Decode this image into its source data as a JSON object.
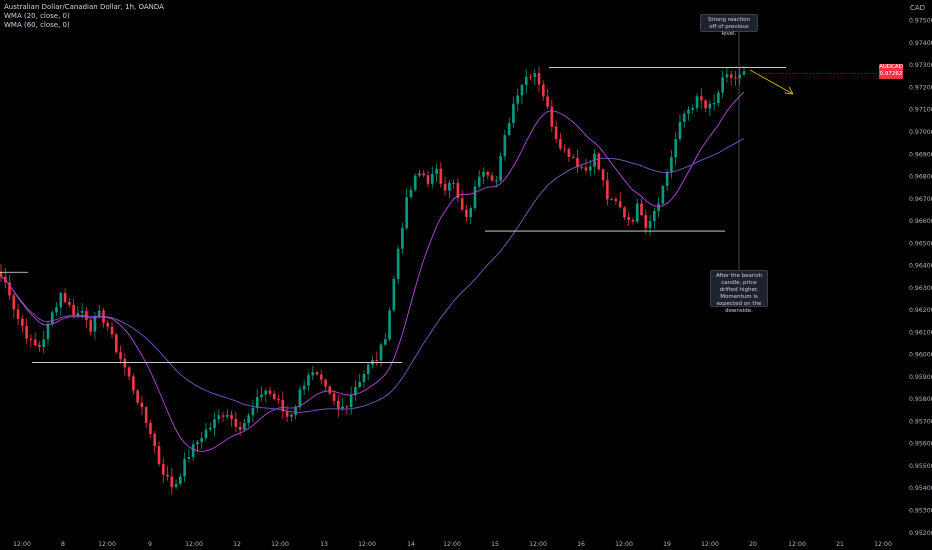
{
  "legend": {
    "title": "Australian Dollar/Canadian Dollar, 1h, OANDA",
    "wma20": "WMA (20, close, 0)",
    "wma60": "WMA (60, close, 0)"
  },
  "currency": "CAD",
  "price_tag": {
    "symbol": "AUDCAD",
    "price": "0.97262",
    "countdown": "39:42"
  },
  "annotations": {
    "top": "Strong reaction off of previous level.",
    "bottom": "After the bearish candle, price drifted higher. Momentum is expected on the downside."
  },
  "colors": {
    "up": "#089981",
    "down": "#f23645",
    "wma20": "#b24bd6",
    "wma60": "#7e57c2",
    "level": "#e6e6e6",
    "arrow": "#c9b700"
  },
  "chart_data": {
    "type": "candlestick",
    "title": "Australian Dollar/Canadian Dollar, 1h, OANDA",
    "ylim": [
      0.952,
      0.975
    ],
    "y_ticks": [
      "0.97500",
      "0.97400",
      "0.97300",
      "0.97200",
      "0.97100",
      "0.97000",
      "0.96900",
      "0.96800",
      "0.96700",
      "0.96600",
      "0.96500",
      "0.96400",
      "0.96300",
      "0.96200",
      "0.96100",
      "0.96000",
      "0.95900",
      "0.95800",
      "0.95700",
      "0.95600",
      "0.95500",
      "0.95400",
      "0.95300",
      "0.95200"
    ],
    "x_ticks": [
      "12:00",
      "8",
      "12:00",
      "9",
      "12:00",
      "12",
      "12:00",
      "13",
      "12:00",
      "14",
      "12:00",
      "15",
      "12:00",
      "16",
      "12:00",
      "19",
      "12:00",
      "20",
      "12:00",
      "21",
      "12:00"
    ],
    "close_path": [
      0.9635,
      0.963,
      0.9618,
      0.9612,
      0.9605,
      0.9603,
      0.961,
      0.962,
      0.9628,
      0.9622,
      0.9618,
      0.962,
      0.9612,
      0.9618,
      0.9615,
      0.9605,
      0.9598,
      0.959,
      0.9582,
      0.9572,
      0.9565,
      0.9552,
      0.9545,
      0.954,
      0.9548,
      0.9555,
      0.956,
      0.9565,
      0.9568,
      0.9572,
      0.9575,
      0.957,
      0.9568,
      0.9572,
      0.9578,
      0.9585,
      0.9582,
      0.9578,
      0.9572,
      0.9575,
      0.9585,
      0.9592,
      0.959,
      0.9585,
      0.958,
      0.9575,
      0.9578,
      0.9585,
      0.959,
      0.9595,
      0.9598,
      0.9605,
      0.9625,
      0.965,
      0.9668,
      0.9678,
      0.9682,
      0.9678,
      0.9682,
      0.9675,
      0.968,
      0.9668,
      0.966,
      0.9672,
      0.9685,
      0.9682,
      0.9678,
      0.9695,
      0.971,
      0.972,
      0.9725,
      0.9728,
      0.972,
      0.9708,
      0.9698,
      0.9692,
      0.969,
      0.9685,
      0.9683,
      0.969,
      0.968,
      0.9668,
      0.9668,
      0.9663,
      0.966,
      0.9668,
      0.9658,
      0.9665,
      0.9673,
      0.9685,
      0.9698,
      0.9708,
      0.9712,
      0.9715,
      0.971,
      0.9712,
      0.9722,
      0.9725,
      0.9724,
      0.9726
    ],
    "levels": [
      {
        "price": 0.9729,
        "label": ""
      },
      {
        "price": 0.96555,
        "label": ""
      },
      {
        "price": 0.95965,
        "label": ""
      },
      {
        "price": 0.9637,
        "label": ""
      }
    ],
    "series": [
      {
        "name": "WMA (20, close, 0)"
      },
      {
        "name": "WMA (60, close, 0)"
      }
    ],
    "projection_arrow": "down"
  }
}
